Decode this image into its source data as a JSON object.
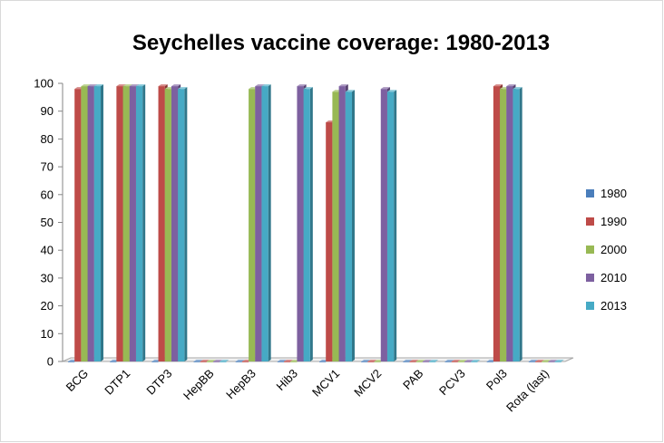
{
  "chart_data": {
    "type": "bar",
    "title": "Seychelles vaccine coverage: 1980-2013",
    "xlabel": "",
    "ylabel": "",
    "ylim": [
      0,
      100
    ],
    "y_ticks": [
      "0",
      "10",
      "20",
      "30",
      "40",
      "50",
      "60",
      "70",
      "80",
      "90",
      "100"
    ],
    "grid": false,
    "legend_position": "right",
    "categories": [
      "BCG",
      "DTP1",
      "DTP3",
      "HepBB",
      "HepB3",
      "Hib3",
      "MCV1",
      "MCV2",
      "PAB",
      "PCV3",
      "Pol3",
      "Rota (last)"
    ],
    "series": [
      {
        "name": "1980",
        "color": "#4a7ebb",
        "values": [
          0,
          0,
          0,
          0,
          0,
          0,
          0,
          0,
          0,
          0,
          0,
          0
        ]
      },
      {
        "name": "1990",
        "color": "#be4b48",
        "values": [
          98,
          99,
          99,
          0,
          0,
          0,
          86,
          0,
          0,
          0,
          99,
          0
        ]
      },
      {
        "name": "2000",
        "color": "#98b954",
        "values": [
          99,
          99,
          98,
          0,
          98,
          0,
          97,
          0,
          0,
          0,
          98,
          0
        ]
      },
      {
        "name": "2010",
        "color": "#7d60a0",
        "values": [
          99,
          99,
          99,
          0,
          99,
          99,
          99,
          98,
          0,
          0,
          99,
          0
        ]
      },
      {
        "name": "2013",
        "color": "#46aac5",
        "values": [
          99,
          99,
          98,
          0,
          99,
          98,
          97,
          97,
          0,
          0,
          98,
          0
        ]
      }
    ]
  }
}
